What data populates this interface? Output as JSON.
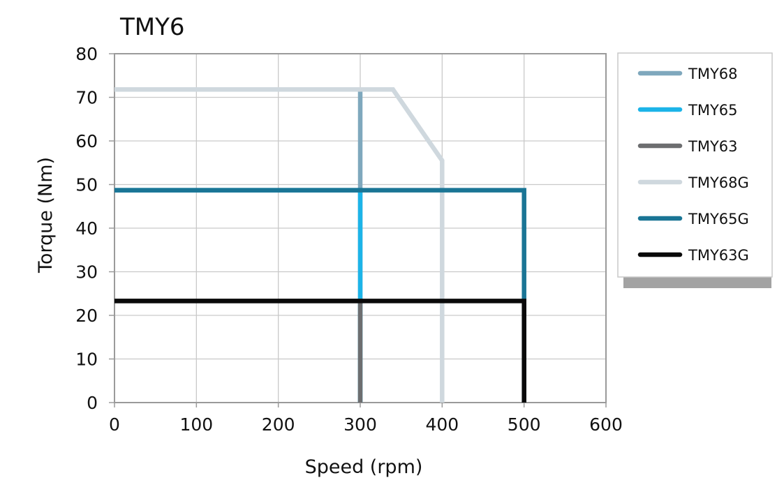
{
  "chart_data": {
    "type": "line",
    "title": "TMY6",
    "xlabel": "Speed (rpm)",
    "ylabel": "Torque (Nm)",
    "xlim": [
      0,
      600
    ],
    "ylim": [
      0,
      80
    ],
    "x_ticks": [
      0,
      100,
      200,
      300,
      400,
      500,
      600
    ],
    "y_ticks": [
      0,
      10,
      20,
      30,
      40,
      50,
      60,
      70,
      80
    ],
    "grid": true,
    "legend_position": "right",
    "series": [
      {
        "name": "TMY68",
        "color": "#7fa8bd",
        "points": [
          [
            0,
            71.8
          ],
          [
            300,
            71.8
          ],
          [
            300,
            0
          ]
        ]
      },
      {
        "name": "TMY65",
        "color": "#1cb4e8",
        "points": [
          [
            0,
            48.7
          ],
          [
            300,
            48.7
          ],
          [
            300,
            0
          ]
        ]
      },
      {
        "name": "TMY63",
        "color": "#6d6e70",
        "points": [
          [
            0,
            23.3
          ],
          [
            300,
            23.3
          ],
          [
            300,
            0
          ]
        ]
      },
      {
        "name": "TMY68G",
        "color": "#cfd8de",
        "points": [
          [
            0,
            71.8
          ],
          [
            340,
            71.8
          ],
          [
            400,
            55.5
          ],
          [
            400,
            0
          ]
        ]
      },
      {
        "name": "TMY65G",
        "color": "#1a7595",
        "points": [
          [
            0,
            48.7
          ],
          [
            500,
            48.7
          ],
          [
            500,
            0
          ]
        ]
      },
      {
        "name": "TMY63G",
        "color": "#0a0a0a",
        "points": [
          [
            0,
            23.3
          ],
          [
            500,
            23.3
          ],
          [
            500,
            0
          ]
        ]
      }
    ]
  }
}
